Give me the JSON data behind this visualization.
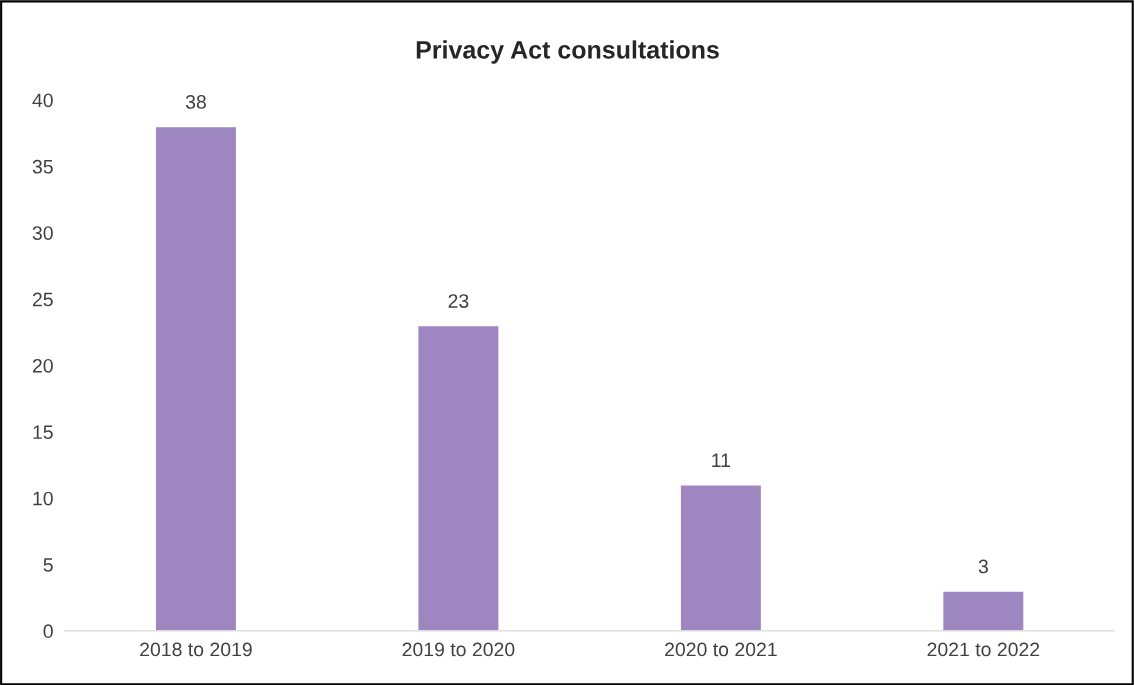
{
  "chart_data": {
    "type": "bar",
    "title": "Privacy Act consultations",
    "categories": [
      "2018 to 2019",
      "2019 to 2020",
      "2020 to 2021",
      "2021 to 2022"
    ],
    "values": [
      38,
      23,
      11,
      3
    ],
    "color": "#9e86c0",
    "ylim": [
      0,
      40
    ],
    "yticks": [
      0,
      5,
      10,
      15,
      20,
      25,
      30,
      35,
      40
    ],
    "grid": false,
    "data_labels": true
  }
}
